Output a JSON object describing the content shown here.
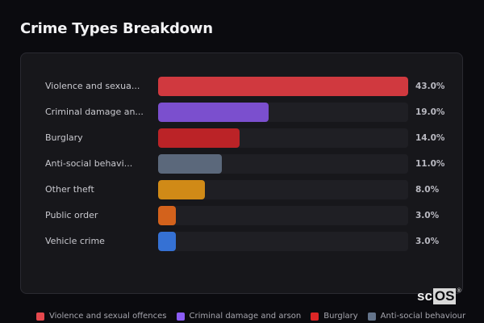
{
  "title": "Crime Types Breakdown",
  "rows": [
    {
      "label": "Violence and sexua...",
      "value": "43.0%",
      "pct": 43.0,
      "color": "#d0393f"
    },
    {
      "label": "Criminal damage an...",
      "value": "19.0%",
      "pct": 19.0,
      "color": "#7b4fce"
    },
    {
      "label": "Burglary",
      "value": "14.0%",
      "pct": 14.0,
      "color": "#bb2327"
    },
    {
      "label": "Anti-social behavi...",
      "value": "11.0%",
      "pct": 11.0,
      "color": "#5b687b"
    },
    {
      "label": "Other theft",
      "value": "8.0%",
      "pct": 8.0,
      "color": "#d08a17"
    },
    {
      "label": "Public order",
      "value": "3.0%",
      "pct": 3.0,
      "color": "#d3621c"
    },
    {
      "label": "Vehicle crime",
      "value": "3.0%",
      "pct": 3.0,
      "color": "#3571d4"
    }
  ],
  "legend": [
    {
      "label": "Violence and sexual offences",
      "color": "#e5484d"
    },
    {
      "label": "Criminal damage and arson",
      "color": "#8b5cf6"
    },
    {
      "label": "Burglary",
      "color": "#dc2626"
    },
    {
      "label": "Anti-social behaviour",
      "color": "#64748b"
    }
  ],
  "watermark": {
    "left": "sc",
    "right": "OS",
    "mark": "®"
  },
  "chart_data": {
    "type": "bar",
    "orientation": "horizontal",
    "title": "Crime Types Breakdown",
    "categories": [
      "Violence and sexual offences",
      "Criminal damage and arson",
      "Burglary",
      "Anti-social behaviour",
      "Other theft",
      "Public order",
      "Vehicle crime"
    ],
    "values": [
      43.0,
      19.0,
      14.0,
      11.0,
      8.0,
      3.0,
      3.0
    ],
    "value_unit": "%",
    "colors": [
      "#d0393f",
      "#7b4fce",
      "#bb2327",
      "#5b687b",
      "#d08a17",
      "#d3621c",
      "#3571d4"
    ],
    "xlabel": "",
    "ylabel": "",
    "xlim": [
      0,
      43
    ],
    "grid": false,
    "legend_position": "bottom",
    "legend_entries": [
      "Violence and sexual offences",
      "Criminal damage and arson",
      "Burglary",
      "Anti-social behaviour"
    ]
  }
}
